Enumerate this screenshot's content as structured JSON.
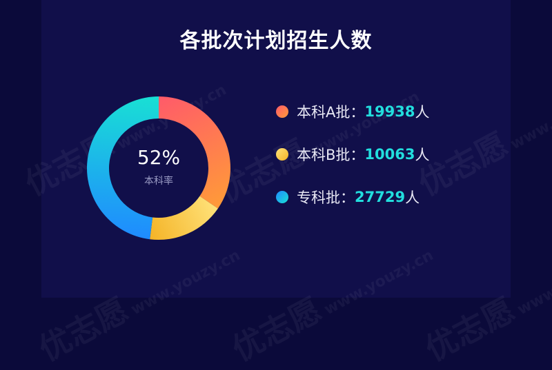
{
  "chart_data": {
    "type": "pie",
    "title": "各批次计划招生人数",
    "center_value": "52%",
    "center_label": "本科率",
    "series": [
      {
        "name": "本科A批",
        "value": 19938,
        "unit": "人",
        "color_start": "#ff5a6a",
        "color_end": "#ff9b38"
      },
      {
        "name": "本科B批",
        "value": 10063,
        "unit": "人",
        "color_start": "#ffe27a",
        "color_end": "#f4b326"
      },
      {
        "name": "专科批",
        "value": 27729,
        "unit": "人",
        "color_start": "#1f8bff",
        "color_end": "#19e0d4"
      }
    ]
  },
  "legend_separator": "：",
  "watermark": {
    "brand": "优志愿",
    "domain": "www.youzy.cn"
  }
}
